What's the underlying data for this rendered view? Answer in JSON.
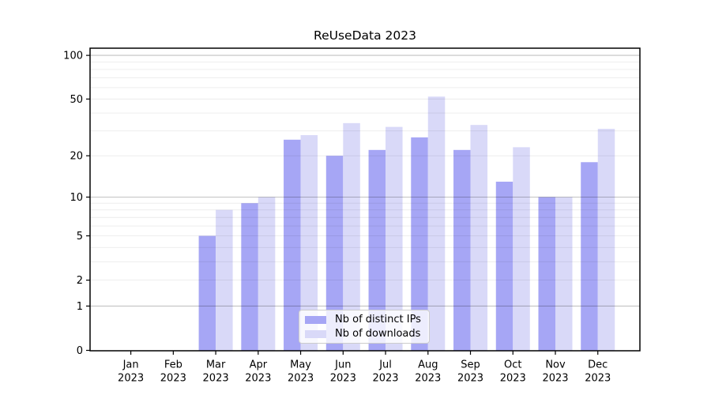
{
  "figure": {
    "title": "ReUseData 2023",
    "background": "#ffffff"
  },
  "chart_data": {
    "type": "bar",
    "title": "ReUseData 2023",
    "categories": [
      "Jan",
      "Feb",
      "Mar",
      "Apr",
      "May",
      "Jun",
      "Jul",
      "Aug",
      "Sep",
      "Oct",
      "Nov",
      "Dec"
    ],
    "category_year": "2023",
    "series": [
      {
        "name": "Nb of distinct IPs",
        "color": "#a6a6f5",
        "values": [
          0,
          0,
          5,
          9,
          26,
          20,
          22,
          27,
          22,
          13,
          10,
          18
        ]
      },
      {
        "name": "Nb of downloads",
        "color": "#d9d9f8",
        "values": [
          0,
          0,
          8,
          10,
          28,
          34,
          32,
          52,
          33,
          23,
          10,
          31
        ]
      }
    ],
    "xlabel": "",
    "ylabel": "",
    "yscale": "log1p",
    "yticks": [
      0,
      1,
      2,
      5,
      10,
      20,
      50,
      100
    ],
    "ylim": [
      0,
      112
    ],
    "grid": {
      "on": true,
      "major_values": [
        1,
        10,
        100
      ],
      "minor_values": [
        2,
        3,
        4,
        5,
        6,
        7,
        8,
        9,
        20,
        30,
        40,
        50,
        60,
        70,
        80,
        90
      ],
      "major_color": "rgba(0,0,0,0.24)",
      "minor_color": "rgba(0,0,0,0.08)"
    },
    "legend": {
      "position": "lower center",
      "entries": [
        "Nb of distinct IPs",
        "Nb of downloads"
      ]
    }
  }
}
